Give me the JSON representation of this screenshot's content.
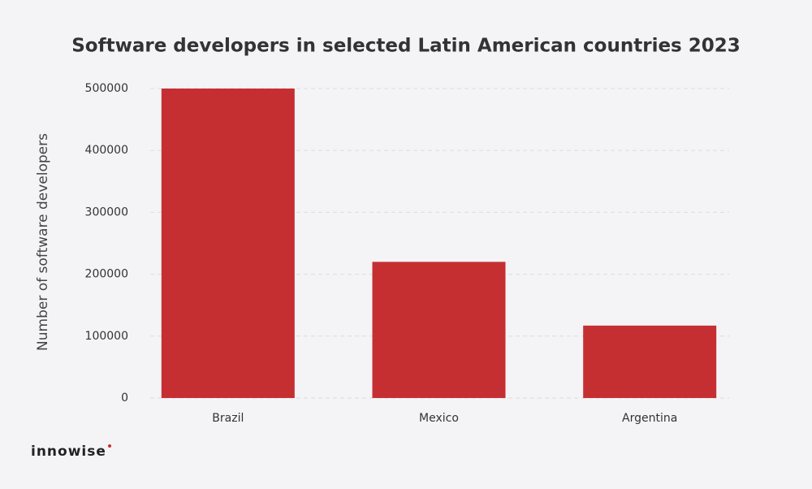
{
  "chart_data": {
    "type": "bar",
    "title": "Software developers in selected Latin American countries 2023",
    "ylabel": "Number of software developers",
    "categories": [
      "Brazil",
      "Mexico",
      "Argentina"
    ],
    "values": [
      500000,
      220000,
      117000
    ],
    "color": "#c62f32",
    "ylim": [
      0,
      500000
    ],
    "yticks": [
      0,
      100000,
      200000,
      300000,
      400000,
      500000
    ],
    "grid": true
  },
  "brand": "innowise"
}
